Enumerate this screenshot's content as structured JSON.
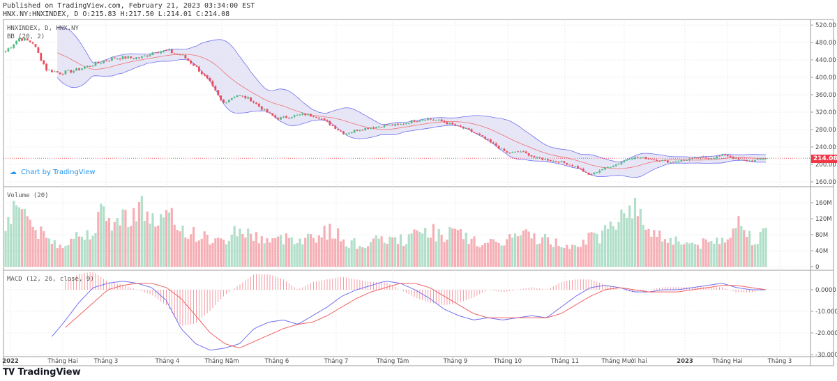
{
  "header": {
    "published": "Published on TradingView.com, February 21, 2023 03:34:00 EST",
    "ohlc": "HNX.NY:HNXINDEX, D O:215.83 H:217.50 L:214.01 C:214.08"
  },
  "legend": {
    "symbol": "HNXINDEX, D, HNX.NY",
    "bb": "BB (20, 2)",
    "volume": "Volume (20)",
    "macd": "MACD (12, 26, close, 9)"
  },
  "branding": {
    "chart_by": "Chart by TradingView",
    "logo": "TradingView"
  },
  "last_price": "214.08",
  "colors": {
    "up": "#53b987",
    "down": "#eb4d5c",
    "bb_fill": "#e0e0f4",
    "bb_band": "#6f6ff0",
    "bb_mid": "#f07070",
    "macd": "#6f6ff0",
    "signal": "#f06060",
    "tag": "#f23645"
  },
  "chart_data": [
    {
      "type": "candlestick",
      "title": "HNXINDEX, D, HNX.NY",
      "ylim": [
        150,
        530
      ],
      "yticks": [
        "520.00",
        "480.00",
        "440.00",
        "400.00",
        "360.00",
        "320.00",
        "280.00",
        "240.00",
        "200.00",
        "160.00"
      ],
      "ytick_values": [
        520,
        480,
        440,
        400,
        360,
        320,
        280,
        240,
        200,
        160
      ],
      "close_approx": [
        460,
        490,
        480,
        418,
        410,
        415,
        425,
        435,
        445,
        445,
        445,
        460,
        460,
        450,
        425,
        390,
        340,
        360,
        350,
        325,
        305,
        310,
        315,
        310,
        290,
        270,
        280,
        285,
        290,
        290,
        300,
        305,
        300,
        290,
        280,
        265,
        245,
        225,
        230,
        215,
        210,
        205,
        195,
        175,
        190,
        200,
        215,
        215,
        210,
        205,
        210,
        215,
        215,
        222,
        210,
        208,
        214
      ],
      "xticks": [
        "2022",
        "Tháng Hai",
        "Tháng 3",
        "Tháng 4",
        "Tháng Năm",
        "Tháng 6",
        "Tháng 7",
        "Tháng Tám",
        "Tháng 9",
        "Tháng 10",
        "Tháng 11",
        "Tháng Mười hai",
        "2023",
        "Tháng Hai",
        "Tháng 3"
      ]
    },
    {
      "type": "bar",
      "title": "Volume (20)",
      "unit": "M",
      "ylim": [
        0,
        180
      ],
      "yticks": [
        "160M",
        "120M",
        "80M",
        "40M",
        "0"
      ],
      "ytick_values": [
        160,
        120,
        80,
        40,
        0
      ],
      "values_approx": [
        110,
        170,
        100,
        70,
        55,
        75,
        80,
        130,
        110,
        130,
        150,
        110,
        125,
        95,
        80,
        70,
        60,
        95,
        80,
        70,
        65,
        75,
        70,
        80,
        90,
        65,
        55,
        60,
        70,
        65,
        75,
        95,
        80,
        85,
        70,
        60,
        55,
        70,
        80,
        75,
        65,
        55,
        60,
        70,
        80,
        120,
        160,
        110,
        80,
        70,
        60,
        55,
        60,
        75,
        110,
        70,
        80
      ]
    },
    {
      "type": "line",
      "title": "MACD (12, 26, close, 9)",
      "ylim": [
        -31,
        7
      ],
      "yticks": [
        "0.0000",
        "-10.0000",
        "-20.0000",
        "-30.0000"
      ],
      "ytick_values": [
        0,
        -10,
        -20,
        -30
      ],
      "macd_approx": [
        null,
        null,
        null,
        -23,
        -15,
        -6,
        1,
        3,
        4,
        3,
        1,
        -5,
        -18,
        -25,
        -28,
        -27,
        -25,
        -18,
        -15,
        -14,
        -16,
        -12,
        -8,
        -3,
        0,
        2,
        4,
        3,
        0,
        -4,
        -9,
        -12,
        -14,
        -13,
        -14,
        -13,
        -12,
        -13,
        -8,
        -3,
        1,
        2,
        1,
        -1,
        -1,
        0,
        0,
        1,
        2,
        3,
        1,
        0,
        0
      ],
      "signal_approx": [
        null,
        null,
        null,
        null,
        -18,
        -12,
        -6,
        0,
        2,
        3,
        3,
        1,
        -4,
        -12,
        -20,
        -25,
        -27,
        -24,
        -21,
        -18,
        -16,
        -15,
        -12,
        -8,
        -4,
        -1,
        1,
        3,
        3,
        1,
        -3,
        -7,
        -11,
        -13,
        -13,
        -13,
        -13,
        -13,
        -11,
        -7,
        -3,
        0,
        1,
        0,
        -1,
        -1,
        -1,
        0,
        1,
        2,
        2,
        1,
        0
      ]
    }
  ]
}
